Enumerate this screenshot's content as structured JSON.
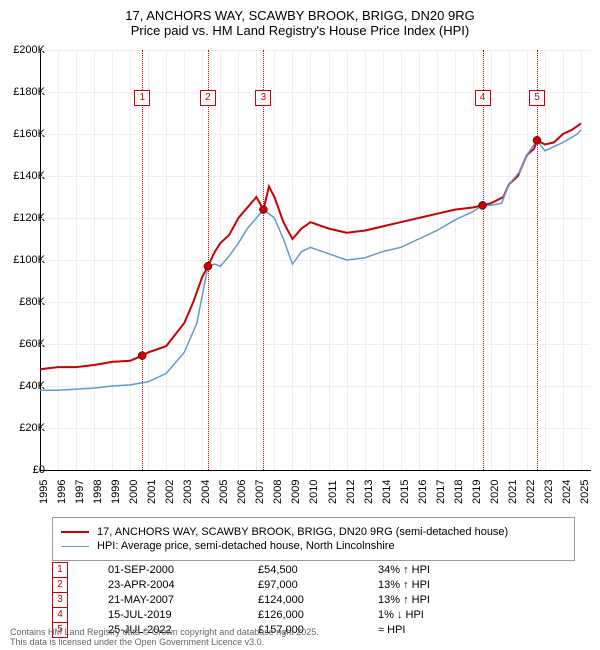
{
  "title": {
    "line1": "17, ANCHORS WAY, SCAWBY BROOK, BRIGG, DN20 9RG",
    "line2": "Price paid vs. HM Land Registry's House Price Index (HPI)",
    "fontsize": 13
  },
  "chart": {
    "type": "line",
    "xlim": [
      1995,
      2025.5
    ],
    "ylim": [
      0,
      200000
    ],
    "ytick_step": 20000,
    "yticks": [
      "£0",
      "£20K",
      "£40K",
      "£60K",
      "£80K",
      "£100K",
      "£120K",
      "£140K",
      "£160K",
      "£180K",
      "£200K"
    ],
    "xticks": [
      1995,
      1996,
      1997,
      1998,
      1999,
      2000,
      2001,
      2002,
      2003,
      2004,
      2005,
      2006,
      2007,
      2008,
      2009,
      2010,
      2011,
      2012,
      2013,
      2014,
      2015,
      2016,
      2017,
      2018,
      2019,
      2020,
      2021,
      2022,
      2023,
      2024,
      2025
    ],
    "grid_color": "#eeeeee",
    "axis_color": "#000000",
    "background_color": "#ffffff",
    "series": [
      {
        "name": "price-paid",
        "color": "#cc0000",
        "width": 2,
        "points": [
          [
            1995,
            48000
          ],
          [
            1996,
            49000
          ],
          [
            1997,
            49000
          ],
          [
            1998,
            50000
          ],
          [
            1999,
            51500
          ],
          [
            2000,
            52000
          ],
          [
            2000.67,
            54500
          ],
          [
            2001,
            56000
          ],
          [
            2002,
            59000
          ],
          [
            2003,
            70000
          ],
          [
            2003.5,
            80000
          ],
          [
            2004,
            92000
          ],
          [
            2004.31,
            97000
          ],
          [
            2004.7,
            104000
          ],
          [
            2005,
            108000
          ],
          [
            2005.5,
            112000
          ],
          [
            2006,
            120000
          ],
          [
            2006.5,
            125000
          ],
          [
            2007,
            130000
          ],
          [
            2007.39,
            124000
          ],
          [
            2007.7,
            135000
          ],
          [
            2008,
            130000
          ],
          [
            2008.5,
            118000
          ],
          [
            2009,
            110000
          ],
          [
            2009.5,
            115000
          ],
          [
            2010,
            118000
          ],
          [
            2011,
            115000
          ],
          [
            2012,
            113000
          ],
          [
            2013,
            114000
          ],
          [
            2014,
            116000
          ],
          [
            2015,
            118000
          ],
          [
            2016,
            120000
          ],
          [
            2017,
            122000
          ],
          [
            2018,
            124000
          ],
          [
            2019,
            125000
          ],
          [
            2019.54,
            126000
          ],
          [
            2020,
            127000
          ],
          [
            2020.7,
            130000
          ],
          [
            2021,
            136000
          ],
          [
            2021.5,
            140000
          ],
          [
            2022,
            150000
          ],
          [
            2022.4,
            153000
          ],
          [
            2022.56,
            157000
          ],
          [
            2023,
            155000
          ],
          [
            2023.5,
            156000
          ],
          [
            2024,
            160000
          ],
          [
            2024.5,
            162000
          ],
          [
            2025,
            165000
          ]
        ]
      },
      {
        "name": "hpi",
        "color": "#6699cc",
        "width": 1.5,
        "points": [
          [
            1995,
            38000
          ],
          [
            1996,
            38000
          ],
          [
            1997,
            38500
          ],
          [
            1998,
            39000
          ],
          [
            1999,
            40000
          ],
          [
            2000,
            40500
          ],
          [
            2001,
            42000
          ],
          [
            2002,
            46000
          ],
          [
            2003,
            56000
          ],
          [
            2003.7,
            70000
          ],
          [
            2004.31,
            97000
          ],
          [
            2004.7,
            98000
          ],
          [
            2005,
            97000
          ],
          [
            2005.5,
            102000
          ],
          [
            2006,
            108000
          ],
          [
            2006.5,
            115000
          ],
          [
            2007,
            120000
          ],
          [
            2007.39,
            124000
          ],
          [
            2008,
            120000
          ],
          [
            2008.5,
            110000
          ],
          [
            2009,
            98000
          ],
          [
            2009.5,
            104000
          ],
          [
            2010,
            106000
          ],
          [
            2011,
            103000
          ],
          [
            2012,
            100000
          ],
          [
            2013,
            101000
          ],
          [
            2014,
            104000
          ],
          [
            2015,
            106000
          ],
          [
            2016,
            110000
          ],
          [
            2017,
            114000
          ],
          [
            2018,
            119000
          ],
          [
            2019,
            123000
          ],
          [
            2019.54,
            126000
          ],
          [
            2020,
            126000
          ],
          [
            2020.6,
            127000
          ],
          [
            2021,
            136000
          ],
          [
            2021.6,
            142000
          ],
          [
            2022,
            150000
          ],
          [
            2022.56,
            157000
          ],
          [
            2023,
            152000
          ],
          [
            2024,
            156000
          ],
          [
            2024.8,
            160000
          ],
          [
            2025,
            162000
          ]
        ]
      }
    ],
    "sale_markers": [
      {
        "n": "1",
        "x": 2000.67,
        "y": 54500
      },
      {
        "n": "2",
        "x": 2004.31,
        "y": 97000
      },
      {
        "n": "3",
        "x": 2007.39,
        "y": 124000
      },
      {
        "n": "4",
        "x": 2019.54,
        "y": 126000
      },
      {
        "n": "5",
        "x": 2022.56,
        "y": 157000
      }
    ],
    "marker_box_y_offset": 40,
    "marker_color": "#cc0000"
  },
  "legend": {
    "items": [
      {
        "color": "#cc0000",
        "width": 2,
        "label": "17, ANCHORS WAY, SCAWBY BROOK, BRIGG, DN20 9RG (semi-detached house)"
      },
      {
        "color": "#6699cc",
        "width": 1.5,
        "label": "HPI: Average price, semi-detached house, North Lincolnshire"
      }
    ]
  },
  "transactions": [
    {
      "n": "1",
      "date": "01-SEP-2000",
      "price": "£54,500",
      "pct": "34% ↑ HPI"
    },
    {
      "n": "2",
      "date": "23-APR-2004",
      "price": "£97,000",
      "pct": "13% ↑ HPI"
    },
    {
      "n": "3",
      "date": "21-MAY-2007",
      "price": "£124,000",
      "pct": "13% ↑ HPI"
    },
    {
      "n": "4",
      "date": "15-JUL-2019",
      "price": "£126,000",
      "pct": "1% ↓ HPI"
    },
    {
      "n": "5",
      "date": "25-JUL-2022",
      "price": "£157,000",
      "pct": "≈ HPI"
    }
  ],
  "footer": {
    "line1": "Contains HM Land Registry data © Crown copyright and database right 2025.",
    "line2": "This data is licensed under the Open Government Licence v3.0."
  }
}
